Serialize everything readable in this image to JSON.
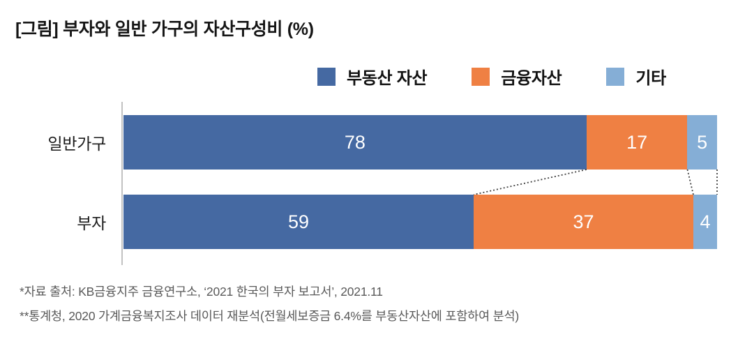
{
  "title": "[그림] 부자와 일반 가구의 자산구성비 (%)",
  "chart_data": {
    "type": "bar",
    "orientation": "horizontal",
    "stacked": true,
    "title": "[그림] 부자와 일반 가구의 자산구성비 (%)",
    "categories": [
      "일반가구",
      "부자"
    ],
    "series": [
      {
        "name": "부동산 자산",
        "color": "#4569A2",
        "values": [
          78,
          59
        ]
      },
      {
        "name": "금융자산",
        "color": "#EF8043",
        "values": [
          17,
          37
        ]
      },
      {
        "name": "기타",
        "color": "#85AED6",
        "values": [
          5,
          4
        ]
      }
    ],
    "xlim": [
      0,
      100
    ],
    "grid": false,
    "legend_position": "top",
    "value_labels": "inside-white",
    "connector_lines": true
  },
  "colors": {
    "axis_line": "#C2C2C2",
    "connector": "#3F3F3F",
    "value_label": "#FFFFFF"
  },
  "footnotes": [
    "*자료 출처: KB금융지주 금융연구소, ‘2021 한국의 부자 보고서’, 2021.11",
    "**통계청, 2020 가계금융복지조사 데이터 재분석(전월세보증금 6.4%를 부동산자산에 포함하여 분석)"
  ]
}
